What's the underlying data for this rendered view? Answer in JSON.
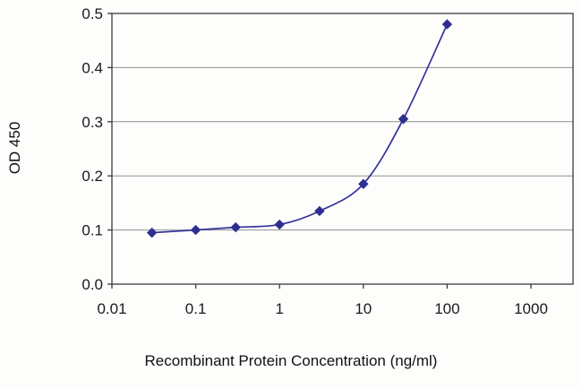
{
  "chart_data": {
    "type": "line",
    "title": "",
    "xlabel": "Recombinant Protein Concentration (ng/ml)",
    "ylabel": "OD 450",
    "x_scale": "log",
    "xlim": [
      0.01,
      1000
    ],
    "ylim": [
      0,
      0.5
    ],
    "x_ticks": [
      0.01,
      0.1,
      1,
      10,
      100,
      1000
    ],
    "x_tick_labels": [
      "0.01",
      "0.1",
      "1",
      "10",
      "100",
      "1000"
    ],
    "y_ticks": [
      0,
      0.1,
      0.2,
      0.3,
      0.4,
      0.5
    ],
    "y_tick_labels": [
      "0.0",
      "0.1",
      "0.2",
      "0.3",
      "0.4",
      "0.5"
    ],
    "grid": "horizontal",
    "legend": "none",
    "colors": {
      "line": "#333399",
      "marker": "#2e2e8f",
      "gridline": "#8f8f8f",
      "axis": "#3a3a3a",
      "background": "#fdfdfc"
    },
    "series": [
      {
        "name": "OD 450",
        "marker": "diamond",
        "x": [
          0.03,
          0.1,
          0.3,
          1,
          3,
          10,
          30,
          100
        ],
        "y": [
          0.095,
          0.1,
          0.105,
          0.11,
          0.135,
          0.185,
          0.305,
          0.48
        ]
      }
    ]
  }
}
